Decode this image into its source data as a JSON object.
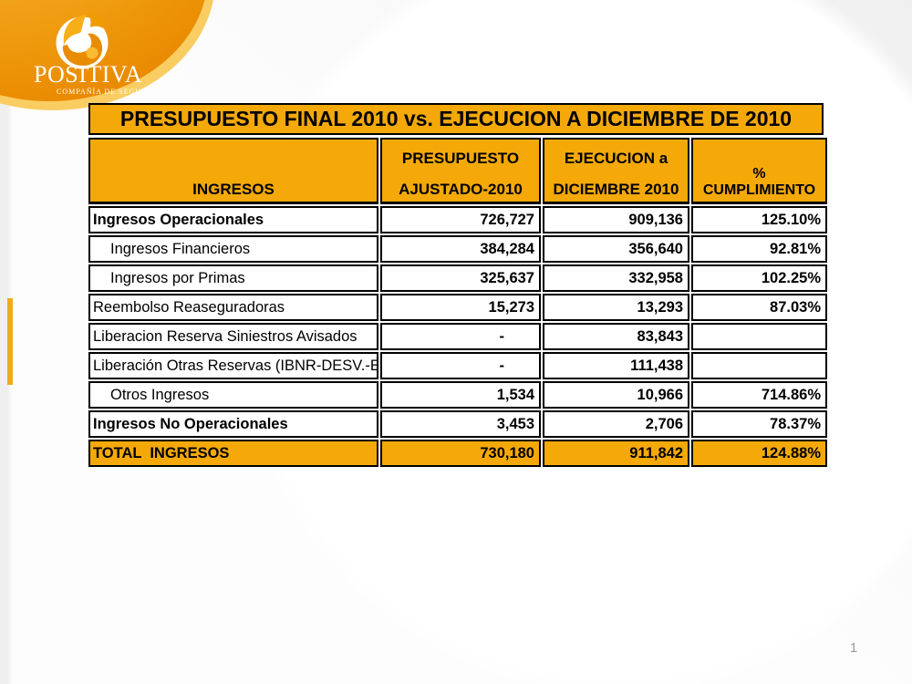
{
  "page_number": "1",
  "logo": {
    "brand": "POSITIVA",
    "tagline": "COMPAÑÍA DE SEGUROS"
  },
  "colors": {
    "brand_gold": "#F4A908",
    "accent_bar": "#F5A81C",
    "table_border": "#000000",
    "logo_orange_deep": "#E88600",
    "logo_orange_light": "#F9BC45",
    "page_number_gray": "#9B9B9B"
  },
  "table": {
    "title": "PRESUPUESTO FINAL 2010 vs. EJECUCION A DICIEMBRE DE 2010",
    "header": {
      "col1": "INGRESOS",
      "col2_line1": "PRESUPUESTO",
      "col2_line2": "AJUSTADO-2010",
      "col3_line1": "EJECUCION a",
      "col3_line2": "DICIEMBRE 2010",
      "col4": "% CUMPLIMIENTO"
    },
    "rows": [
      {
        "label": "Ingresos Operacionales",
        "bold": true,
        "indent": false,
        "presupuesto": "726,727",
        "ejecucion": "909,136",
        "cumplimiento": "125.10%",
        "total": false
      },
      {
        "label": "Ingresos Financieros",
        "bold": false,
        "indent": true,
        "presupuesto": "384,284",
        "ejecucion": "356,640",
        "cumplimiento": "92.81%",
        "total": false
      },
      {
        "label": "Ingresos por Primas",
        "bold": false,
        "indent": true,
        "presupuesto": "325,637",
        "ejecucion": "332,958",
        "cumplimiento": "102.25%",
        "total": false
      },
      {
        "label": "Reembolso Reaseguradoras",
        "bold": false,
        "indent": false,
        "presupuesto": "15,273",
        "ejecucion": "13,293",
        "cumplimiento": "87.03%",
        "total": false
      },
      {
        "label": "Liberacion Reserva Siniestros Avisados",
        "bold": false,
        "indent": false,
        "presupuesto": "-",
        "ejecucion": "83,843",
        "cumplimiento": "",
        "total": false
      },
      {
        "label": "Liberación Otras Reservas (IBNR-DESV.-E",
        "bold": false,
        "indent": false,
        "presupuesto": "-",
        "ejecucion": "111,438",
        "cumplimiento": "",
        "total": false
      },
      {
        "label": "Otros Ingresos",
        "bold": false,
        "indent": true,
        "presupuesto": "1,534",
        "ejecucion": "10,966",
        "cumplimiento": "714.86%",
        "total": false
      },
      {
        "label": "Ingresos No Operacionales",
        "bold": true,
        "indent": false,
        "presupuesto": "3,453",
        "ejecucion": "2,706",
        "cumplimiento": "78.37%",
        "total": false
      },
      {
        "label": "TOTAL  INGRESOS",
        "bold": true,
        "indent": false,
        "presupuesto": "730,180",
        "ejecucion": "911,842",
        "cumplimiento": "124.88%",
        "total": true
      }
    ]
  },
  "chart_data": {
    "type": "table",
    "title": "PRESUPUESTO FINAL 2010 vs. EJECUCION A DICIEMBRE DE 2010",
    "columns": [
      "INGRESOS",
      "PRESUPUESTO AJUSTADO-2010",
      "EJECUCION a DICIEMBRE 2010",
      "% CUMPLIMIENTO"
    ],
    "rows": [
      [
        "Ingresos Operacionales",
        726727,
        909136,
        125.1
      ],
      [
        "Ingresos Financieros",
        384284,
        356640,
        92.81
      ],
      [
        "Ingresos por Primas",
        325637,
        332958,
        102.25
      ],
      [
        "Reembolso Reaseguradoras",
        15273,
        13293,
        87.03
      ],
      [
        "Liberacion Reserva Siniestros Avisados",
        null,
        83843,
        null
      ],
      [
        "Liberación Otras Reservas (IBNR-DESV.-E",
        null,
        111438,
        null
      ],
      [
        "Otros Ingresos",
        1534,
        10966,
        714.86
      ],
      [
        "Ingresos No Operacionales",
        3453,
        2706,
        78.37
      ],
      [
        "TOTAL INGRESOS",
        730180,
        911842,
        124.88
      ]
    ]
  }
}
